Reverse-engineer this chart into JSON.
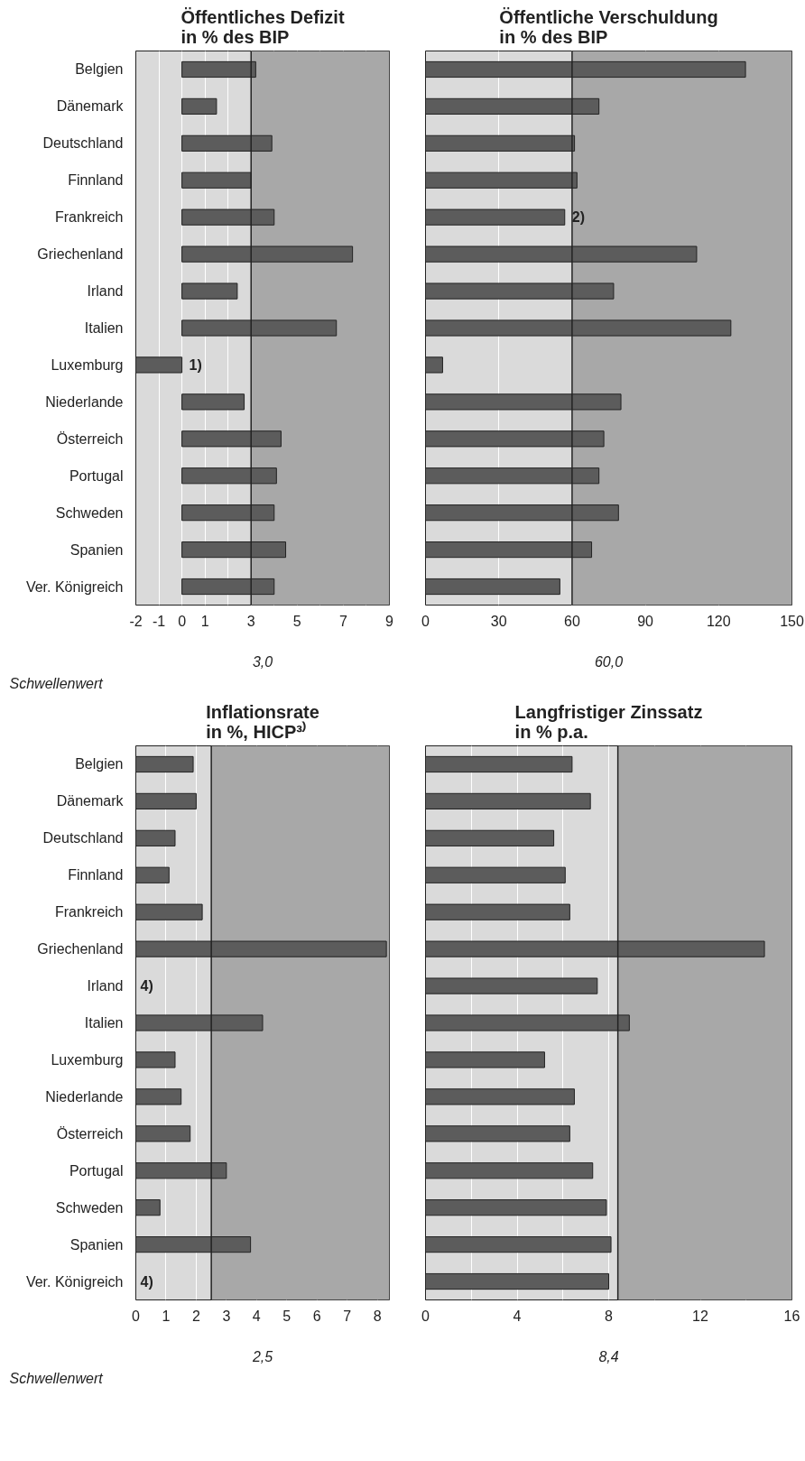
{
  "chart_data": [
    {
      "type": "bar",
      "orientation": "horizontal",
      "title": "Öffentliches Defizit\nin % des BIP",
      "categories": [
        "Belgien",
        "Dänemark",
        "Deutschland",
        "Finnland",
        "Frankreich",
        "Griechenland",
        "Irland",
        "Italien",
        "Luxemburg",
        "Niederlande",
        "Österreich",
        "Portugal",
        "Schweden",
        "Spanien",
        "Ver. Königreich"
      ],
      "values": [
        3.2,
        1.5,
        3.9,
        3.0,
        4.0,
        7.4,
        2.4,
        6.7,
        -2.0,
        2.7,
        4.3,
        4.1,
        4.0,
        4.5,
        4.0
      ],
      "color": "#5c5c5c",
      "xlim": [
        -2,
        9
      ],
      "xticks": [
        -2,
        -1,
        0,
        1,
        {
          "value": 2,
          "label": null
        },
        3,
        {
          "value": 4,
          "label": null
        },
        5,
        {
          "value": 6,
          "label": null
        },
        7,
        {
          "value": 8,
          "label": null
        },
        9
      ],
      "grid": "x",
      "ref_lines": [
        {
          "axis": "x",
          "value": 3,
          "label": "3,0",
          "color": "#222222"
        }
      ],
      "bands": [
        {
          "axis": "x",
          "from": 3,
          "to": 9,
          "color": "#a8a8a8"
        }
      ],
      "annotations": [
        "Schwellenwert",
        {
          "text": "1)",
          "x": 0,
          "y": "Luxemburg"
        }
      ]
    },
    {
      "type": "bar",
      "orientation": "horizontal",
      "title": "Öffentliche Verschuldung\nin % des BIP",
      "categories": [
        "Belgien",
        "Dänemark",
        "Deutschland",
        "Finnland",
        "Frankreich",
        "Griechenland",
        "Irland",
        "Italien",
        "Luxemburg",
        "Niederlande",
        "Österreich",
        "Portugal",
        "Schweden",
        "Spanien",
        "Ver. Königreich"
      ],
      "values": [
        131,
        71,
        61,
        62,
        57,
        111,
        77,
        125,
        7,
        80,
        73,
        71,
        79,
        68,
        55
      ],
      "color": "#5c5c5c",
      "xlim": [
        0,
        150
      ],
      "xticks": [
        0,
        30,
        60,
        90,
        120,
        150
      ],
      "grid": "x",
      "tick_labels": "x",
      "ref_lines": [
        {
          "axis": "x",
          "value": 60,
          "label": "60,0",
          "color": "#222222"
        }
      ],
      "bands": [
        {
          "axis": "x",
          "from": 60,
          "to": 150,
          "color": "#a8a8a8"
        }
      ],
      "annotations": [
        {
          "text": "2)",
          "x": 57,
          "y": "Frankreich"
        }
      ]
    },
    {
      "type": "bar",
      "orientation": "horizontal",
      "title": "Inflationsrate\nin %, HICP³⁾",
      "categories": [
        "Belgien",
        "Dänemark",
        "Deutschland",
        "Finnland",
        "Frankreich",
        "Griechenland",
        "Irland",
        "Italien",
        "Luxemburg",
        "Niederlande",
        "Österreich",
        "Portugal",
        "Schweden",
        "Spanien",
        "Ver. Königreich"
      ],
      "values": [
        1.9,
        2.0,
        1.3,
        1.1,
        2.2,
        8.3,
        null,
        4.2,
        1.3,
        1.5,
        1.8,
        3.0,
        0.8,
        3.8,
        null
      ],
      "color": "#5c5c5c",
      "xlim": [
        0,
        8.4
      ],
      "xticks": [
        0,
        1,
        2,
        3,
        4,
        5,
        6,
        7,
        8
      ],
      "grid": "x",
      "ref_lines": [
        {
          "axis": "x",
          "value": 2.5,
          "label": "2,5",
          "color": "#222222"
        }
      ],
      "bands": [
        {
          "axis": "x",
          "from": 2.5,
          "to": 8.4,
          "color": "#a8a8a8"
        }
      ],
      "value_labels": [
        null,
        null,
        null,
        null,
        null,
        null,
        "4)",
        null,
        null,
        null,
        null,
        null,
        null,
        null,
        "4)"
      ],
      "annotations": [
        "Schwellenwert"
      ]
    },
    {
      "type": "bar",
      "orientation": "horizontal",
      "title": "Langfristiger Zinssatz\nin % p.a.",
      "categories": [
        "Belgien",
        "Dänemark",
        "Deutschland",
        "Finnland",
        "Frankreich",
        "Griechenland",
        "Irland",
        "Italien",
        "Luxemburg",
        "Niederlande",
        "Österreich",
        "Portugal",
        "Schweden",
        "Spanien",
        "Ver. Königreich"
      ],
      "values": [
        6.4,
        7.2,
        5.6,
        6.1,
        6.3,
        14.8,
        7.5,
        8.9,
        5.2,
        6.5,
        6.3,
        7.3,
        7.9,
        8.1,
        8.0
      ],
      "color": "#5c5c5c",
      "xlim": [
        0,
        16
      ],
      "xticks": [
        0,
        {
          "value": 2,
          "label": null
        },
        4,
        {
          "value": 6,
          "label": null
        },
        8,
        {
          "value": 10,
          "label": null
        },
        12,
        {
          "value": 14,
          "label": null
        },
        16
      ],
      "grid": "x",
      "tick_labels": "x",
      "ref_lines": [
        {
          "axis": "x",
          "value": 8.4,
          "label": "8,4",
          "color": "#222222"
        }
      ],
      "bands": [
        {
          "axis": "x",
          "from": 8.4,
          "to": 16,
          "color": "#a8a8a8"
        }
      ]
    }
  ]
}
